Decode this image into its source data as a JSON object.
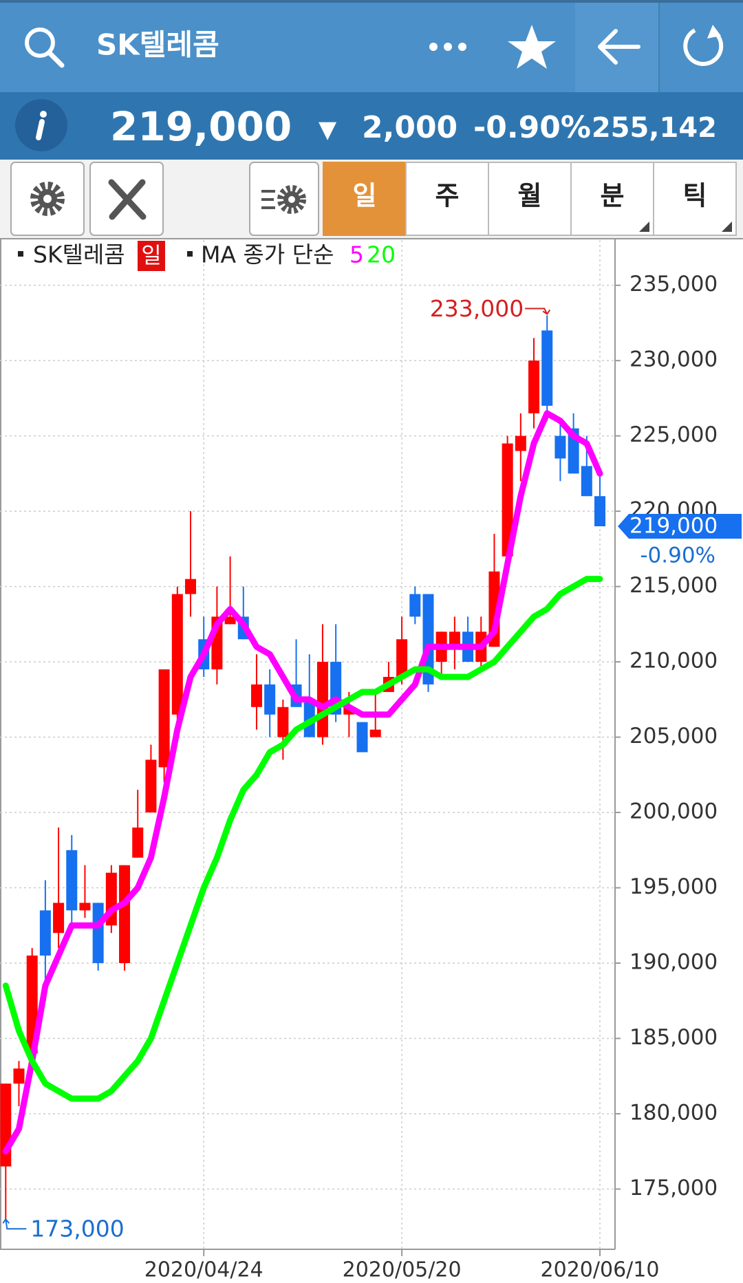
{
  "header": {
    "title": "SK텔레콤"
  },
  "quote": {
    "price": "219,000",
    "direction": "▼",
    "change": "2,000",
    "change_pct": "-0.90%",
    "volume": "255,142"
  },
  "tabs": [
    "일",
    "주",
    "월",
    "분",
    "틱"
  ],
  "active_tab": 0,
  "chart_data": {
    "type": "candlestick",
    "categories": [
      null,
      null,
      null,
      null,
      null,
      null,
      null,
      null,
      null,
      null,
      null,
      null,
      null,
      null,
      null,
      "2020/04/24",
      null,
      null,
      null,
      null,
      null,
      null,
      null,
      null,
      null,
      null,
      null,
      null,
      null,
      null,
      "2020/05/20",
      null,
      null,
      null,
      null,
      null,
      null,
      null,
      null,
      null,
      null,
      null,
      null,
      null,
      null,
      "2020/06/10"
    ],
    "legend_tag": "일",
    "legend_prefix": "MA 종가 단순",
    "series": [
      {
        "name": "SK텔레콤",
        "type": "candlestick",
        "up_color": "#ff0000",
        "down_color": "#1670f0",
        "open": [
          176500,
          182000,
          184000,
          193500,
          192000,
          197500,
          193500,
          194000,
          192500,
          190000,
          197000,
          200000,
          203000,
          206500,
          214500,
          211500,
          209500,
          212500,
          213000,
          207000,
          208500,
          205000,
          208500,
          207500,
          205000,
          210000,
          206500,
          206000,
          205000,
          208000,
          209000,
          214500,
          214500,
          210000,
          211000,
          212000,
          210000,
          211000,
          217000,
          224000,
          226500,
          232000,
          225000,
          225500,
          223000,
          221000
        ],
        "high": [
          182000,
          183500,
          191000,
          195500,
          199000,
          198500,
          196500,
          194000,
          196500,
          196500,
          201500,
          204500,
          209500,
          215000,
          220000,
          213000,
          215000,
          217000,
          215000,
          210500,
          209500,
          207500,
          211500,
          210500,
          212500,
          212500,
          208000,
          206000,
          208000,
          210000,
          213000,
          215000,
          214500,
          212000,
          213000,
          213000,
          213000,
          218500,
          225000,
          226500,
          231500,
          233000,
          226000,
          226500,
          225000,
          222500
        ],
        "low": [
          173000,
          180500,
          183500,
          187500,
          191000,
          192000,
          193000,
          189500,
          192000,
          189500,
          197000,
          200000,
          202000,
          206000,
          213000,
          209000,
          208500,
          212500,
          211500,
          205500,
          205000,
          203500,
          207000,
          205000,
          204500,
          206000,
          205000,
          204000,
          205000,
          208000,
          208500,
          212500,
          208000,
          209000,
          209500,
          210000,
          209500,
          211000,
          217000,
          222000,
          225500,
          226000,
          222000,
          222500,
          221000,
          219000
        ],
        "close": [
          182000,
          183000,
          190500,
          190500,
          194000,
          193500,
          194000,
          190000,
          196000,
          196500,
          199000,
          203500,
          209500,
          214500,
          215500,
          209500,
          213000,
          213000,
          211500,
          208500,
          206500,
          207000,
          207000,
          205000,
          210000,
          206500,
          207000,
          204000,
          205500,
          209000,
          211500,
          213000,
          208500,
          212000,
          212000,
          210000,
          212000,
          216000,
          224500,
          225000,
          230000,
          227000,
          223500,
          222500,
          221000,
          219000
        ]
      },
      {
        "name": "5",
        "type": "line",
        "color": "#ff00ff",
        "values": [
          177500,
          179000,
          183500,
          188500,
          190500,
          192500,
          192500,
          192500,
          193500,
          194000,
          195000,
          197000,
          201000,
          205500,
          209000,
          210500,
          212500,
          213500,
          212500,
          211000,
          210500,
          209000,
          207500,
          207500,
          207000,
          207500,
          207000,
          206500,
          206500,
          206500,
          207500,
          208500,
          211000,
          211000,
          211000,
          211000,
          211000,
          212000,
          216500,
          221000,
          224500,
          226500,
          226000,
          225000,
          224500,
          222500
        ]
      },
      {
        "name": "20",
        "type": "line",
        "color": "#00ff00",
        "values": [
          188500,
          185500,
          183500,
          182000,
          181500,
          181000,
          181000,
          181000,
          181500,
          182500,
          183500,
          185000,
          187500,
          190000,
          192500,
          195000,
          197000,
          199500,
          201500,
          202500,
          204000,
          204500,
          205500,
          206000,
          206500,
          207000,
          207500,
          208000,
          208000,
          208500,
          209000,
          209500,
          209500,
          209000,
          209000,
          209000,
          209500,
          210000,
          211000,
          212000,
          213000,
          213500,
          214500,
          215000,
          215500,
          215500
        ]
      }
    ],
    "ylim": [
      171000,
      238000
    ],
    "yticks": [
      {
        "value": 175000,
        "label": "175,000"
      },
      {
        "value": 180000,
        "label": "180,000"
      },
      {
        "value": 185000,
        "label": "185,000"
      },
      {
        "value": 190000,
        "label": "190,000"
      },
      {
        "value": 195000,
        "label": "195,000"
      },
      {
        "value": 200000,
        "label": "200,000"
      },
      {
        "value": 205000,
        "label": "205,000"
      },
      {
        "value": 210000,
        "label": "210,000"
      },
      {
        "value": 215000,
        "label": "215,000"
      },
      {
        "value": 220000,
        "label": "220,000"
      },
      {
        "value": 225000,
        "label": "225,000"
      },
      {
        "value": 230000,
        "label": "230,000"
      },
      {
        "value": 235000,
        "label": "235,000"
      }
    ],
    "grid": true,
    "high_label": "233,000",
    "low_label": "173,000",
    "last_label": "219,000",
    "last_change": "-0.90%"
  }
}
